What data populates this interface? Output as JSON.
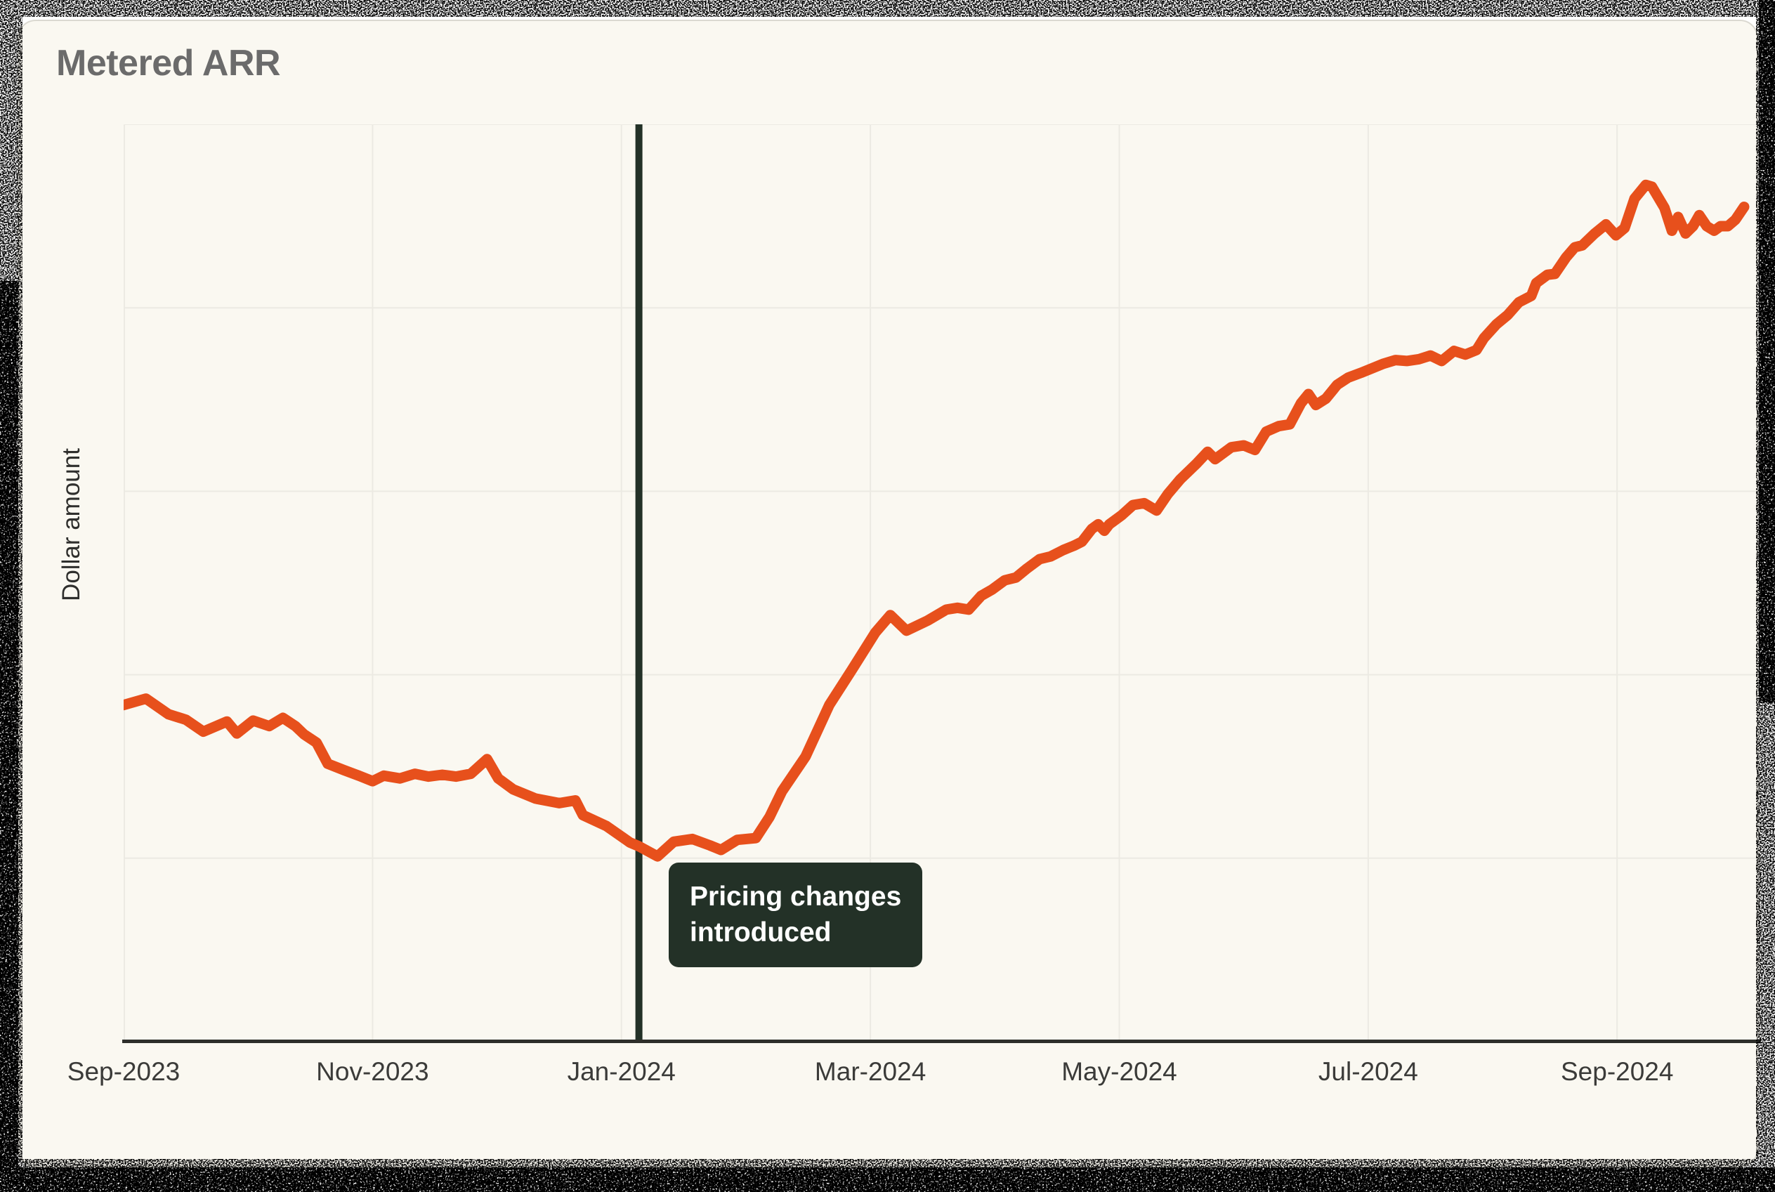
{
  "page": {
    "title": "Metered ARR"
  },
  "colors": {
    "line": "#E7501C",
    "annotation_bg": "#233127",
    "annotation_text": "#FFFFFF",
    "axis": "#2D2E2A",
    "grid": "#ECEAE3",
    "card_bg": "#FAF8F1",
    "title_text": "#6B6B6B",
    "tick_text": "#3B3B39"
  },
  "annotation": {
    "line1": "Pricing changes",
    "line2": "introduced"
  },
  "chart_data": {
    "type": "line",
    "title": "Metered ARR",
    "xlabel": "",
    "ylabel": "Dollar amount",
    "x_unit": "months since Sep-2023",
    "x_range": [
      0,
      13.15
    ],
    "y_axis_tick_labels": "none (relative dollar scale 0-100)",
    "ylim": [
      0,
      100
    ],
    "grid": true,
    "legend": "none",
    "x_ticks": [
      {
        "pos": 0,
        "label": "Sep-2023"
      },
      {
        "pos": 2,
        "label": "Nov-2023"
      },
      {
        "pos": 4,
        "label": "Jan-2024"
      },
      {
        "pos": 6,
        "label": "Mar-2024"
      },
      {
        "pos": 8,
        "label": "May-2024"
      },
      {
        "pos": 10,
        "label": "Jul-2024"
      },
      {
        "pos": 12,
        "label": "Sep-2024"
      }
    ],
    "event_marker": {
      "pos": 4.14,
      "label": "Pricing changes introduced"
    },
    "series": [
      {
        "name": "Metered ARR",
        "color": "#E7501C",
        "points": [
          [
            0,
            36.7
          ],
          [
            0.18,
            37.4
          ],
          [
            0.36,
            35.7
          ],
          [
            0.5,
            35.1
          ],
          [
            0.64,
            33.8
          ],
          [
            0.83,
            34.9
          ],
          [
            0.91,
            33.6
          ],
          [
            1.04,
            35.0
          ],
          [
            1.17,
            34.4
          ],
          [
            1.28,
            35.3
          ],
          [
            1.38,
            34.4
          ],
          [
            1.45,
            33.5
          ],
          [
            1.55,
            32.6
          ],
          [
            1.64,
            30.3
          ],
          [
            1.77,
            29.6
          ],
          [
            1.89,
            29.0
          ],
          [
            2.0,
            28.4
          ],
          [
            2.09,
            29.0
          ],
          [
            2.22,
            28.7
          ],
          [
            2.34,
            29.2
          ],
          [
            2.45,
            28.9
          ],
          [
            2.56,
            29.1
          ],
          [
            2.67,
            28.9
          ],
          [
            2.79,
            29.2
          ],
          [
            2.92,
            30.8
          ],
          [
            3.01,
            28.7
          ],
          [
            3.13,
            27.5
          ],
          [
            3.31,
            26.5
          ],
          [
            3.5,
            26.0
          ],
          [
            3.63,
            26.3
          ],
          [
            3.69,
            24.7
          ],
          [
            3.88,
            23.5
          ],
          [
            4.07,
            21.7
          ],
          [
            4.14,
            21.3
          ],
          [
            4.29,
            20.2
          ],
          [
            4.42,
            21.8
          ],
          [
            4.57,
            22.1
          ],
          [
            4.71,
            21.4
          ],
          [
            4.8,
            20.9
          ],
          [
            4.93,
            22.0
          ],
          [
            5.08,
            22.2
          ],
          [
            5.19,
            24.5
          ],
          [
            5.29,
            27.3
          ],
          [
            5.48,
            31.1
          ],
          [
            5.67,
            36.7
          ],
          [
            5.85,
            40.5
          ],
          [
            6.04,
            44.6
          ],
          [
            6.16,
            46.5
          ],
          [
            6.29,
            44.8
          ],
          [
            6.46,
            45.9
          ],
          [
            6.61,
            47.1
          ],
          [
            6.7,
            47.3
          ],
          [
            6.79,
            47.1
          ],
          [
            6.89,
            48.6
          ],
          [
            6.98,
            49.3
          ],
          [
            7.08,
            50.3
          ],
          [
            7.17,
            50.6
          ],
          [
            7.26,
            51.6
          ],
          [
            7.36,
            52.6
          ],
          [
            7.45,
            52.9
          ],
          [
            7.55,
            53.6
          ],
          [
            7.64,
            54.1
          ],
          [
            7.7,
            54.5
          ],
          [
            7.78,
            55.9
          ],
          [
            7.83,
            56.4
          ],
          [
            7.88,
            55.7
          ],
          [
            7.92,
            56.4
          ],
          [
            8.02,
            57.4
          ],
          [
            8.11,
            58.5
          ],
          [
            8.2,
            58.7
          ],
          [
            8.3,
            57.9
          ],
          [
            8.39,
            59.7
          ],
          [
            8.49,
            61.3
          ],
          [
            8.62,
            63.0
          ],
          [
            8.71,
            64.3
          ],
          [
            8.77,
            63.5
          ],
          [
            8.9,
            64.8
          ],
          [
            9.0,
            65.0
          ],
          [
            9.09,
            64.5
          ],
          [
            9.18,
            66.5
          ],
          [
            9.28,
            67.1
          ],
          [
            9.37,
            67.3
          ],
          [
            9.46,
            69.6
          ],
          [
            9.52,
            70.6
          ],
          [
            9.58,
            69.4
          ],
          [
            9.66,
            70.1
          ],
          [
            9.75,
            71.6
          ],
          [
            9.84,
            72.4
          ],
          [
            9.94,
            72.9
          ],
          [
            10.03,
            73.4
          ],
          [
            10.12,
            73.9
          ],
          [
            10.22,
            74.3
          ],
          [
            10.31,
            74.2
          ],
          [
            10.41,
            74.4
          ],
          [
            10.5,
            74.8
          ],
          [
            10.59,
            74.2
          ],
          [
            10.69,
            75.3
          ],
          [
            10.78,
            74.9
          ],
          [
            10.87,
            75.4
          ],
          [
            10.93,
            76.7
          ],
          [
            11.03,
            78.2
          ],
          [
            11.12,
            79.2
          ],
          [
            11.21,
            80.6
          ],
          [
            11.31,
            81.3
          ],
          [
            11.35,
            82.7
          ],
          [
            11.44,
            83.6
          ],
          [
            11.5,
            83.7
          ],
          [
            11.59,
            85.5
          ],
          [
            11.66,
            86.6
          ],
          [
            11.72,
            86.8
          ],
          [
            11.82,
            88.1
          ],
          [
            11.91,
            89.1
          ],
          [
            11.99,
            87.9
          ],
          [
            12.06,
            88.7
          ],
          [
            12.14,
            91.9
          ],
          [
            12.23,
            93.4
          ],
          [
            12.28,
            93.2
          ],
          [
            12.38,
            90.9
          ],
          [
            12.44,
            88.4
          ],
          [
            12.49,
            89.9
          ],
          [
            12.55,
            88.1
          ],
          [
            12.61,
            88.9
          ],
          [
            12.66,
            90.1
          ],
          [
            12.72,
            88.9
          ],
          [
            12.78,
            88.4
          ],
          [
            12.83,
            88.9
          ],
          [
            12.89,
            88.9
          ],
          [
            12.95,
            89.6
          ],
          [
            13.02,
            91.0
          ]
        ]
      }
    ]
  }
}
